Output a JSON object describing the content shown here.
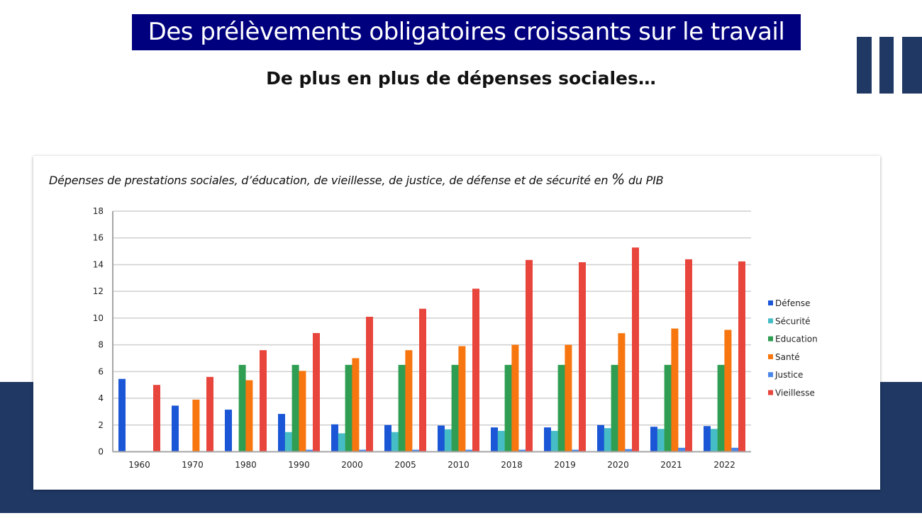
{
  "slide": {
    "title": "Des prélèvements obligatoires croissants sur le travail",
    "subtitle": "De plus en plus de dépenses sociales…",
    "colors": {
      "banner": "#00007f",
      "navy": "#1f3864"
    }
  },
  "chart_data": {
    "type": "bar",
    "title_prefix": "Dépenses de prestations sociales, d’éducation, de vieillesse, de justice, de défense et de sécurité en ",
    "title_pct": "%",
    "title_suffix": " du PIB",
    "xlabel": "",
    "ylabel": "",
    "ylim": [
      0,
      18
    ],
    "yticks": [
      0,
      2,
      4,
      6,
      8,
      10,
      12,
      14,
      16,
      18
    ],
    "grid": true,
    "legend_position": "right",
    "categories": [
      "1960",
      "1970",
      "1980",
      "1990",
      "2000",
      "2005",
      "2010",
      "2018",
      "2019",
      "2020",
      "2021",
      "2022"
    ],
    "series": [
      {
        "name": "Défense",
        "color": "#1a56d6",
        "values": [
          5.45,
          3.45,
          3.15,
          2.83,
          2.05,
          2.0,
          1.96,
          1.82,
          1.82,
          2.0,
          1.87,
          1.92
        ]
      },
      {
        "name": "Sécurité",
        "color": "#46bdc6",
        "values": [
          0,
          0,
          0,
          1.47,
          1.38,
          1.47,
          1.68,
          1.56,
          1.56,
          1.77,
          1.71,
          1.71
        ]
      },
      {
        "name": "Education",
        "color": "#2f9e52",
        "values": [
          0,
          0,
          6.5,
          6.5,
          6.5,
          6.5,
          6.5,
          6.5,
          6.5,
          6.5,
          6.5,
          6.5
        ]
      },
      {
        "name": "Santé",
        "color": "#f7760f",
        "values": [
          0,
          3.9,
          5.35,
          6.05,
          7.0,
          7.6,
          7.9,
          8.0,
          8.0,
          8.87,
          9.22,
          9.12
        ]
      },
      {
        "name": "Justice",
        "color": "#4a86e8",
        "values": [
          0,
          0,
          0,
          0.15,
          0.15,
          0.15,
          0.15,
          0.15,
          0.15,
          0.2,
          0.3,
          0.3
        ]
      },
      {
        "name": "Vieillesse",
        "color": "#e8453c",
        "values": [
          5.0,
          5.6,
          7.6,
          8.88,
          10.1,
          10.7,
          12.2,
          14.35,
          14.18,
          15.28,
          14.4,
          14.24
        ]
      }
    ]
  }
}
